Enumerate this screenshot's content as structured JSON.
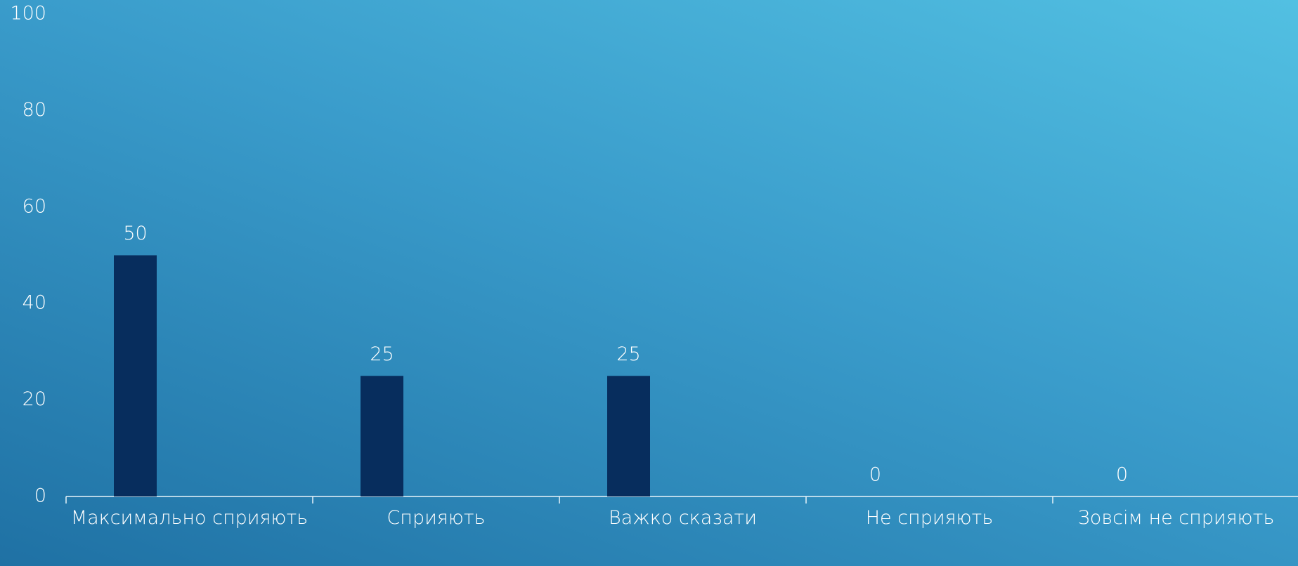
{
  "chart_data": {
    "type": "bar",
    "categories": [
      "Максимально сприяють",
      "Сприяють",
      "Важко сказати",
      "Не сприяють",
      "Зовсім не сприяють"
    ],
    "values": [
      50,
      25,
      25,
      0,
      0
    ],
    "color": "#072d5d",
    "ylim": [
      0,
      100
    ],
    "yticks": [
      0,
      20,
      40,
      60,
      80,
      100
    ],
    "grid": false
  }
}
